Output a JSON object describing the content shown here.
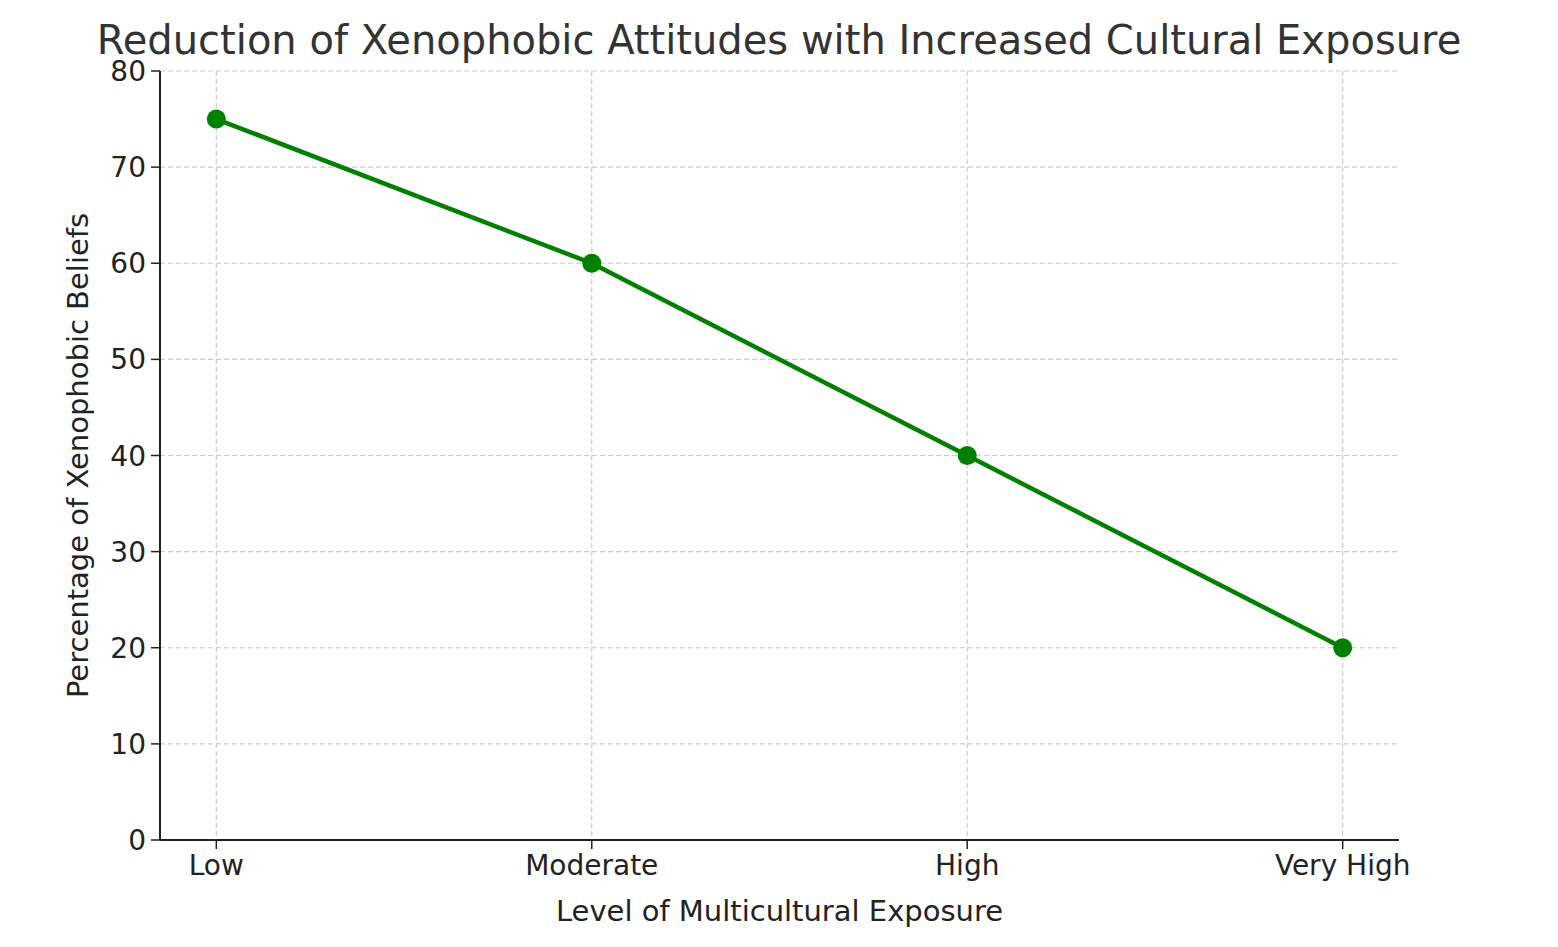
{
  "chart_data": {
    "type": "line",
    "title": "Reduction of Xenophobic Attitudes with Increased Cultural Exposure",
    "x_label": "Level of Multicultural Exposure",
    "y_label": "Percentage of Xenophobic Beliefs",
    "categories": [
      "Low",
      "Moderate",
      "High",
      "Very High"
    ],
    "values": [
      75,
      60,
      40,
      20
    ],
    "color": "#008000",
    "marker": "o",
    "line_style": "solid",
    "ylim": [
      0,
      80
    ],
    "yticks": [
      0,
      10,
      20,
      30,
      40,
      50,
      60,
      70,
      80
    ],
    "grid": true
  }
}
